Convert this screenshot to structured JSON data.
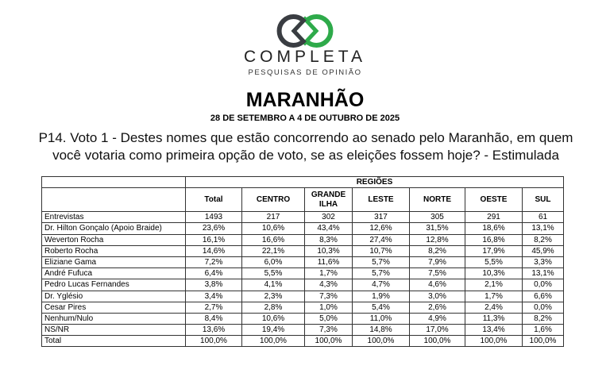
{
  "header": {
    "brand": "COMPLETA",
    "tagline": "PESQUISAS DE OPINIÃO",
    "logo_colors": {
      "dark": "#3a3d42",
      "green": "#2eaa4a"
    },
    "state": "MARANHÃO",
    "date": "28 DE SETEMBRO A 4 DE OUTUBRO DE 2025"
  },
  "question": "P14. Voto 1 - Destes nomes que estão concorrendo ao senado pelo Maranhão, em quem você votaria como primeira opção de voto, se as eleições fossem hoje? - Estimulada",
  "table": {
    "group_header": "REGIÕES",
    "columns": [
      "Total",
      "CENTRO",
      "GRANDE ILHA",
      "LESTE",
      "NORTE",
      "OESTE",
      "SUL"
    ],
    "rows": [
      {
        "label": "Entrevistas",
        "values": [
          "1493",
          "217",
          "302",
          "317",
          "305",
          "291",
          "61"
        ]
      },
      {
        "label": "Dr. Hilton Gonçalo (Apoio Braide)",
        "values": [
          "23,6%",
          "10,6%",
          "43,4%",
          "12,6%",
          "31,5%",
          "18,6%",
          "13,1%"
        ]
      },
      {
        "label": "Weverton Rocha",
        "values": [
          "16,1%",
          "16,6%",
          "8,3%",
          "27,4%",
          "12,8%",
          "16,8%",
          "8,2%"
        ]
      },
      {
        "label": "Roberto Rocha",
        "values": [
          "14,6%",
          "22,1%",
          "10,3%",
          "10,7%",
          "8,2%",
          "17,9%",
          "45,9%"
        ]
      },
      {
        "label": "Eliziane Gama",
        "values": [
          "7,2%",
          "6,0%",
          "11,6%",
          "5,7%",
          "7,9%",
          "5,5%",
          "3,3%"
        ]
      },
      {
        "label": "André Fufuca",
        "values": [
          "6,4%",
          "5,5%",
          "1,7%",
          "5,7%",
          "7,5%",
          "10,3%",
          "13,1%"
        ]
      },
      {
        "label": "Pedro Lucas Fernandes",
        "values": [
          "3,8%",
          "4,1%",
          "4,3%",
          "4,7%",
          "4,6%",
          "2,1%",
          "0,0%"
        ]
      },
      {
        "label": "Dr. Yglésio",
        "values": [
          "3,4%",
          "2,3%",
          "7,3%",
          "1,9%",
          "3,0%",
          "1,7%",
          "6,6%"
        ]
      },
      {
        "label": "Cesar Pires",
        "values": [
          "2,7%",
          "2,8%",
          "1,0%",
          "5,4%",
          "2,6%",
          "2,4%",
          "0,0%"
        ]
      },
      {
        "label": "Nenhum/Nulo",
        "values": [
          "8,4%",
          "10,6%",
          "5,0%",
          "11,0%",
          "4,9%",
          "11,3%",
          "8,2%"
        ]
      },
      {
        "label": "NS/NR",
        "values": [
          "13,6%",
          "19,4%",
          "7,3%",
          "14,8%",
          "17,0%",
          "13,4%",
          "1,6%"
        ]
      },
      {
        "label": "Total",
        "values": [
          "100,0%",
          "100,0%",
          "100,0%",
          "100,0%",
          "100,0%",
          "100,0%",
          "100,0%"
        ]
      }
    ]
  }
}
